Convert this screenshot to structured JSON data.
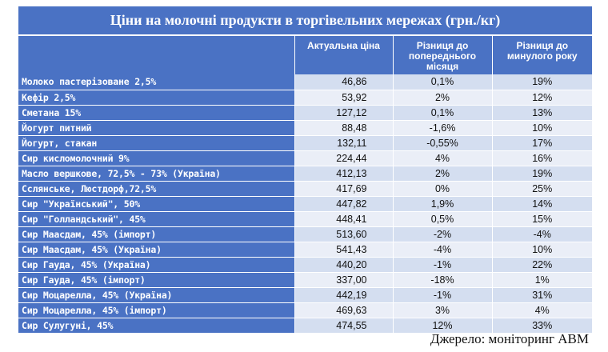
{
  "title": "Ціни на молочні продукти в торгівельних мережах (грн./кг)",
  "columns": {
    "product": "",
    "price": "Актуальна ціна",
    "diff_month": "Різниця до попереднього місяця",
    "diff_year": "Різниця до минулого року"
  },
  "rows": [
    {
      "name": "Молоко пастерізоване 2,5%",
      "price": "46,86",
      "diff_month": "0,1%",
      "diff_year": "19%"
    },
    {
      "name": "Кефір 2,5%",
      "price": "53,92",
      "diff_month": "2%",
      "diff_year": "12%"
    },
    {
      "name": "Сметана 15%",
      "price": "127,12",
      "diff_month": "0,1%",
      "diff_year": "13%"
    },
    {
      "name": "Йогурт питний",
      "price": "88,48",
      "diff_month": "-1,6%",
      "diff_year": "10%"
    },
    {
      "name": "Йогурт, стакан",
      "price": "132,11",
      "diff_month": "-0,55%",
      "diff_year": "17%"
    },
    {
      "name": "Сир кисломолочний 9%",
      "price": "224,44",
      "diff_month": "4%",
      "diff_year": "16%"
    },
    {
      "name": "Масло вершкове, 72,5% - 73% (Україна)",
      "price": "412,13",
      "diff_month": "2%",
      "diff_year": "19%"
    },
    {
      "name": "Сслянське, Люстдорф,72,5%",
      "price": "417,69",
      "diff_month": "0%",
      "diff_year": "25%"
    },
    {
      "name": "Сир \"Український\", 50%",
      "price": "447,82",
      "diff_month": "1,9%",
      "diff_year": "14%"
    },
    {
      "name": "Сир \"Голландський\", 45%",
      "price": "448,41",
      "diff_month": "0,5%",
      "diff_year": "15%"
    },
    {
      "name": "Сир Маасдам, 45% (імпорт)",
      "price": "513,60",
      "diff_month": "-2%",
      "diff_year": "-4%"
    },
    {
      "name": "Сир Маасдам, 45% (Україна)",
      "price": "541,43",
      "diff_month": "-4%",
      "diff_year": "10%"
    },
    {
      "name": "Сир Гауда, 45% (Україна)",
      "price": "440,20",
      "diff_month": "-1%",
      "diff_year": "22%"
    },
    {
      "name": "Сир Гауда, 45% (імпорт)",
      "price": "337,00",
      "diff_month": "-18%",
      "diff_year": "1%"
    },
    {
      "name": "Сир Моцарелла, 45% (Україна)",
      "price": "442,19",
      "diff_month": "-1%",
      "diff_year": "31%"
    },
    {
      "name": "Сир Моцарелла, 45% (імпорт)",
      "price": "469,63",
      "diff_month": "3%",
      "diff_year": "4%"
    },
    {
      "name": "Сир Сулугуні, 45%",
      "price": "474,55",
      "diff_month": "12%",
      "diff_year": "33%"
    }
  ],
  "source": "Джерело: моніторинг АВМ",
  "colors": {
    "header": "#4a72c4",
    "row_odd": "#d4def0",
    "row_even": "#eaeef7"
  }
}
